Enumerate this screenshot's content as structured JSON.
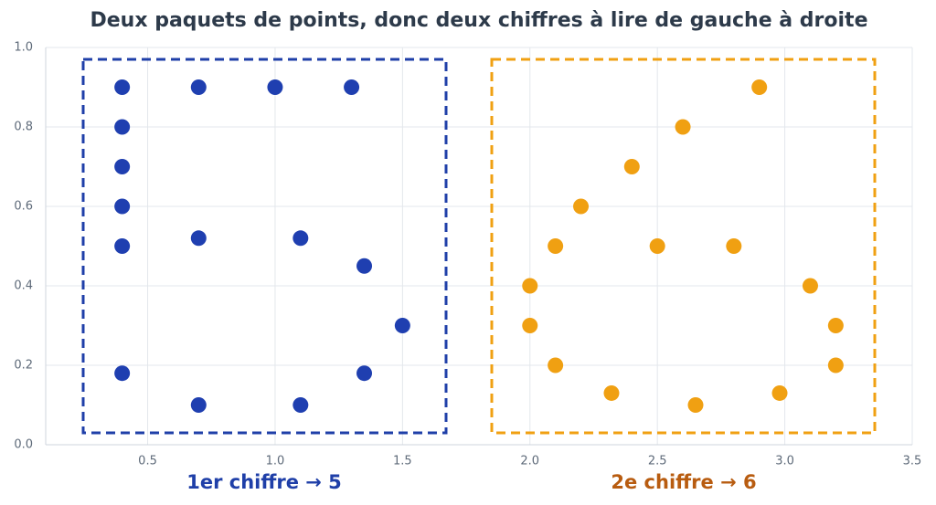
{
  "chart_data": {
    "type": "scatter",
    "title": "Deux paquets de points, donc deux chiffres à lire de gauche à droite",
    "xlim": [
      0.1,
      3.5
    ],
    "ylim": [
      0,
      1
    ],
    "xticks": [
      0.5,
      {
        "value": 1,
        "label": "1.0"
      },
      1.5,
      {
        "value": 2,
        "label": "2.0"
      },
      2.5,
      {
        "value": 3,
        "label": "3.0"
      },
      3.5
    ],
    "yticks": [
      {
        "value": 0,
        "label": "0.0"
      },
      0.2,
      0.4,
      0.6,
      0.8,
      {
        "value": 1,
        "label": "1.0"
      }
    ],
    "grid": true,
    "series": [
      {
        "color": "#1f3fb0",
        "x": [
          0.4,
          0.7,
          1.0,
          1.3,
          0.4,
          0.4,
          0.4,
          0.4,
          0.7,
          1.1,
          1.35,
          1.5,
          0.4,
          1.35,
          0.7,
          1.1
        ],
        "values": [
          0.9,
          0.9,
          0.9,
          0.9,
          0.8,
          0.7,
          0.6,
          0.5,
          0.52,
          0.52,
          0.45,
          0.3,
          0.18,
          0.18,
          0.1,
          0.1
        ]
      },
      {
        "color": "#f0a012",
        "x": [
          2.9,
          2.6,
          2.4,
          2.2,
          2.1,
          2.5,
          2.8,
          2.0,
          3.1,
          2.0,
          3.2,
          2.1,
          3.2,
          2.32,
          2.98,
          2.65
        ],
        "values": [
          0.9,
          0.8,
          0.7,
          0.6,
          0.5,
          0.5,
          0.5,
          0.4,
          0.4,
          0.3,
          0.3,
          0.2,
          0.2,
          0.13,
          0.13,
          0.1
        ]
      }
    ],
    "annotations": [
      {
        "text": "1er chiffre  →  5",
        "color": "#1f3fa8"
      },
      {
        "text": "2e chiffre  →  6",
        "color": "#b85c10"
      }
    ]
  }
}
